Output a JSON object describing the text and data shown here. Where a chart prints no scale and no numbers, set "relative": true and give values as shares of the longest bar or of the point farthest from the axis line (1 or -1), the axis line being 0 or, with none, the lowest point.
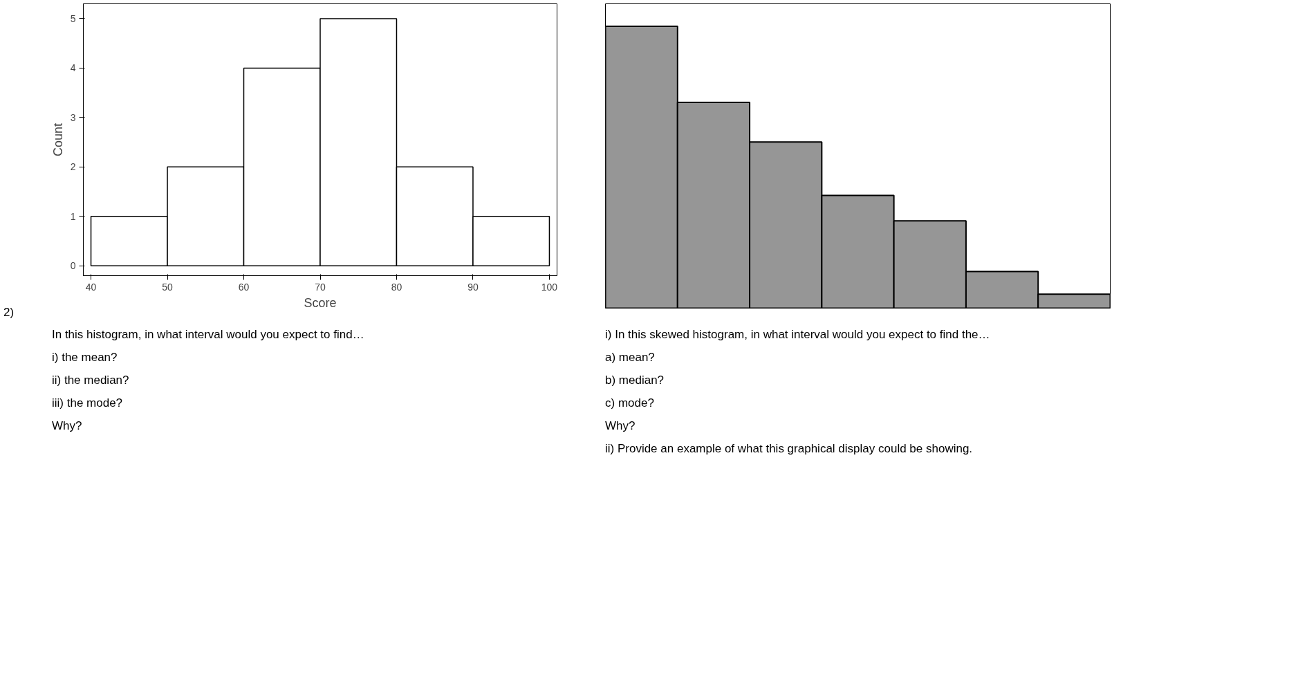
{
  "chart_data": [
    {
      "type": "histogram",
      "bins": [
        40,
        50,
        60,
        70,
        80,
        90,
        100
      ],
      "values": [
        1,
        2,
        4,
        5,
        2,
        1
      ],
      "color": "#ffffff",
      "xlabel": "Score",
      "ylabel": "Count",
      "xlim": [
        39,
        101
      ],
      "ylim": [
        -0.2,
        5.3
      ],
      "xticks": [
        40,
        50,
        60,
        70,
        80,
        90,
        100
      ],
      "yticks": [
        0,
        1,
        2,
        3,
        4,
        5
      ],
      "grid": false,
      "annotations": [
        "2)",
        "In this histogram, in what interval would you expect to find…",
        "i) the mean?",
        "ii) the median?",
        "iii) the mode?",
        "Why?"
      ]
    },
    {
      "type": "bar",
      "relative": true,
      "categories": [
        null,
        null,
        null,
        null,
        null,
        null,
        null
      ],
      "values": [
        1,
        0.73,
        0.59,
        0.4,
        0.31,
        0.13,
        0.05
      ],
      "color": "#969696",
      "annotations": [
        "i) In this skewed histogram, in what interval would you expect to find the…",
        "a) mean?",
        "b) median?",
        "c) mode?",
        "Why?",
        "ii) Provide an example of what this graphical display could be showing."
      ]
    }
  ]
}
